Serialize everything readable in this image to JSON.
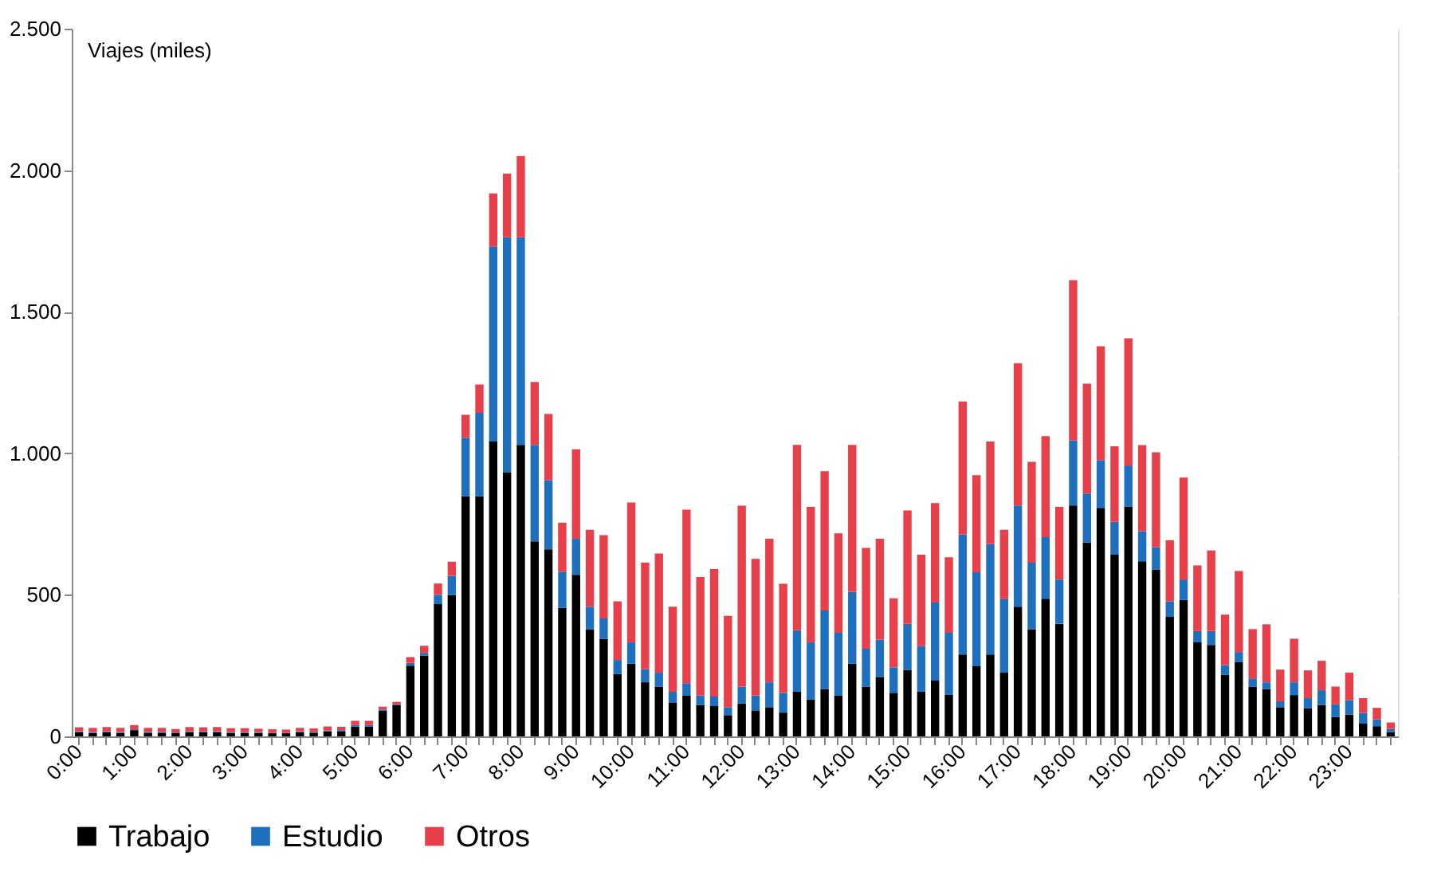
{
  "chart_data": {
    "type": "bar",
    "stacked": true,
    "ylabel": "Viajes (miles)",
    "categories": [
      "0:00",
      null,
      null,
      null,
      "1:00",
      null,
      null,
      null,
      "2:00",
      null,
      null,
      null,
      "3:00",
      null,
      null,
      null,
      "4:00",
      null,
      null,
      null,
      "5:00",
      null,
      null,
      null,
      "6:00",
      null,
      null,
      null,
      "7:00",
      null,
      null,
      null,
      "8:00",
      null,
      null,
      null,
      "9:00",
      null,
      null,
      null,
      "10:00",
      null,
      null,
      null,
      "11:00",
      null,
      null,
      null,
      "12:00",
      null,
      null,
      null,
      "13:00",
      null,
      null,
      null,
      "14:00",
      null,
      null,
      null,
      "15:00",
      null,
      null,
      null,
      "16:00",
      null,
      null,
      null,
      "17:00",
      null,
      null,
      null,
      "18:00",
      null,
      null,
      null,
      "19:00",
      null,
      null,
      null,
      "20:00",
      null,
      null,
      null,
      "21:00",
      null,
      null,
      null,
      "22:00",
      null,
      null,
      null,
      "23:00",
      null,
      null,
      null
    ],
    "series": [
      {
        "name": "Trabajo",
        "color": "#000000",
        "values": [
          15,
          12,
          15,
          12,
          22,
          13,
          13,
          12,
          15,
          15,
          15,
          12,
          12,
          12,
          11,
          11,
          15,
          13,
          18,
          17,
          35,
          35,
          90,
          110,
          250,
          285,
          467,
          500,
          848,
          848,
          1042,
          933,
          1030,
          689,
          661,
          454,
          571,
          379,
          345,
          220,
          257,
          191,
          176,
          120,
          145,
          111,
          107,
          75,
          116,
          92,
          103,
          84,
          158,
          130,
          167,
          145,
          257,
          176,
          210,
          154,
          235,
          158,
          197,
          148,
          289,
          248,
          289,
          225,
          458,
          379,
          486,
          398,
          816,
          685,
          807,
          642,
          811,
          619,
          589,
          422,
          482,
          332,
          323,
          218,
          263,
          176,
          167,
          103,
          146,
          99,
          111,
          68,
          77,
          45,
          36,
          15
        ]
      },
      {
        "name": "Estudio",
        "color": "#1f6fbf",
        "values": [
          3,
          3,
          3,
          3,
          3,
          3,
          3,
          2,
          3,
          3,
          3,
          3,
          3,
          3,
          2,
          2,
          3,
          3,
          3,
          5,
          5,
          5,
          5,
          3,
          10,
          10,
          33,
          67,
          207,
          295,
          689,
          830,
          733,
          341,
          244,
          128,
          127,
          79,
          72,
          50,
          75,
          47,
          49,
          38,
          43,
          34,
          34,
          28,
          60,
          53,
          88,
          70,
          217,
          202,
          278,
          221,
          254,
          134,
          132,
          90,
          163,
          161,
          276,
          218,
          424,
          332,
          390,
          261,
          358,
          235,
          218,
          156,
          229,
          173,
          169,
          116,
          146,
          106,
          79,
          55,
          70,
          40,
          49,
          34,
          35,
          29,
          24,
          21,
          45,
          36,
          52,
          45,
          51,
          38,
          24,
          11
        ]
      },
      {
        "name": "Otros",
        "color": "#e8404a",
        "values": [
          14,
          15,
          15,
          15,
          15,
          14,
          14,
          12,
          15,
          14,
          15,
          14,
          14,
          12,
          12,
          11,
          12,
          12,
          14,
          12,
          15,
          15,
          10,
          9,
          20,
          25,
          40,
          50,
          81,
          100,
          187,
          225,
          287,
          222,
          234,
          173,
          316,
          272,
          294,
          207,
          494,
          376,
          421,
          300,
          613,
          418,
          450,
          323,
          639,
          482,
          507,
          385,
          655,
          479,
          492,
          351,
          519,
          356,
          356,
          244,
          400,
          323,
          351,
          267,
          470,
          343,
          363,
          244,
          502,
          356,
          357,
          257,
          567,
          388,
          402,
          267,
          449,
          304,
          336,
          216,
          362,
          232,
          285,
          178,
          286,
          174,
          205,
          112,
          154,
          98,
          104,
          63,
          97,
          52,
          41,
          23
        ]
      }
    ],
    "ylim": [
      0,
      2500
    ],
    "yticks": [
      0,
      500,
      {
        "value": 1000,
        "label": "1.000"
      },
      {
        "value": 1500,
        "label": "1.500"
      },
      {
        "value": 2000,
        "label": "2.000"
      },
      {
        "value": 2500,
        "label": "2.500"
      }
    ],
    "grid": "y",
    "legend": "bottom"
  }
}
